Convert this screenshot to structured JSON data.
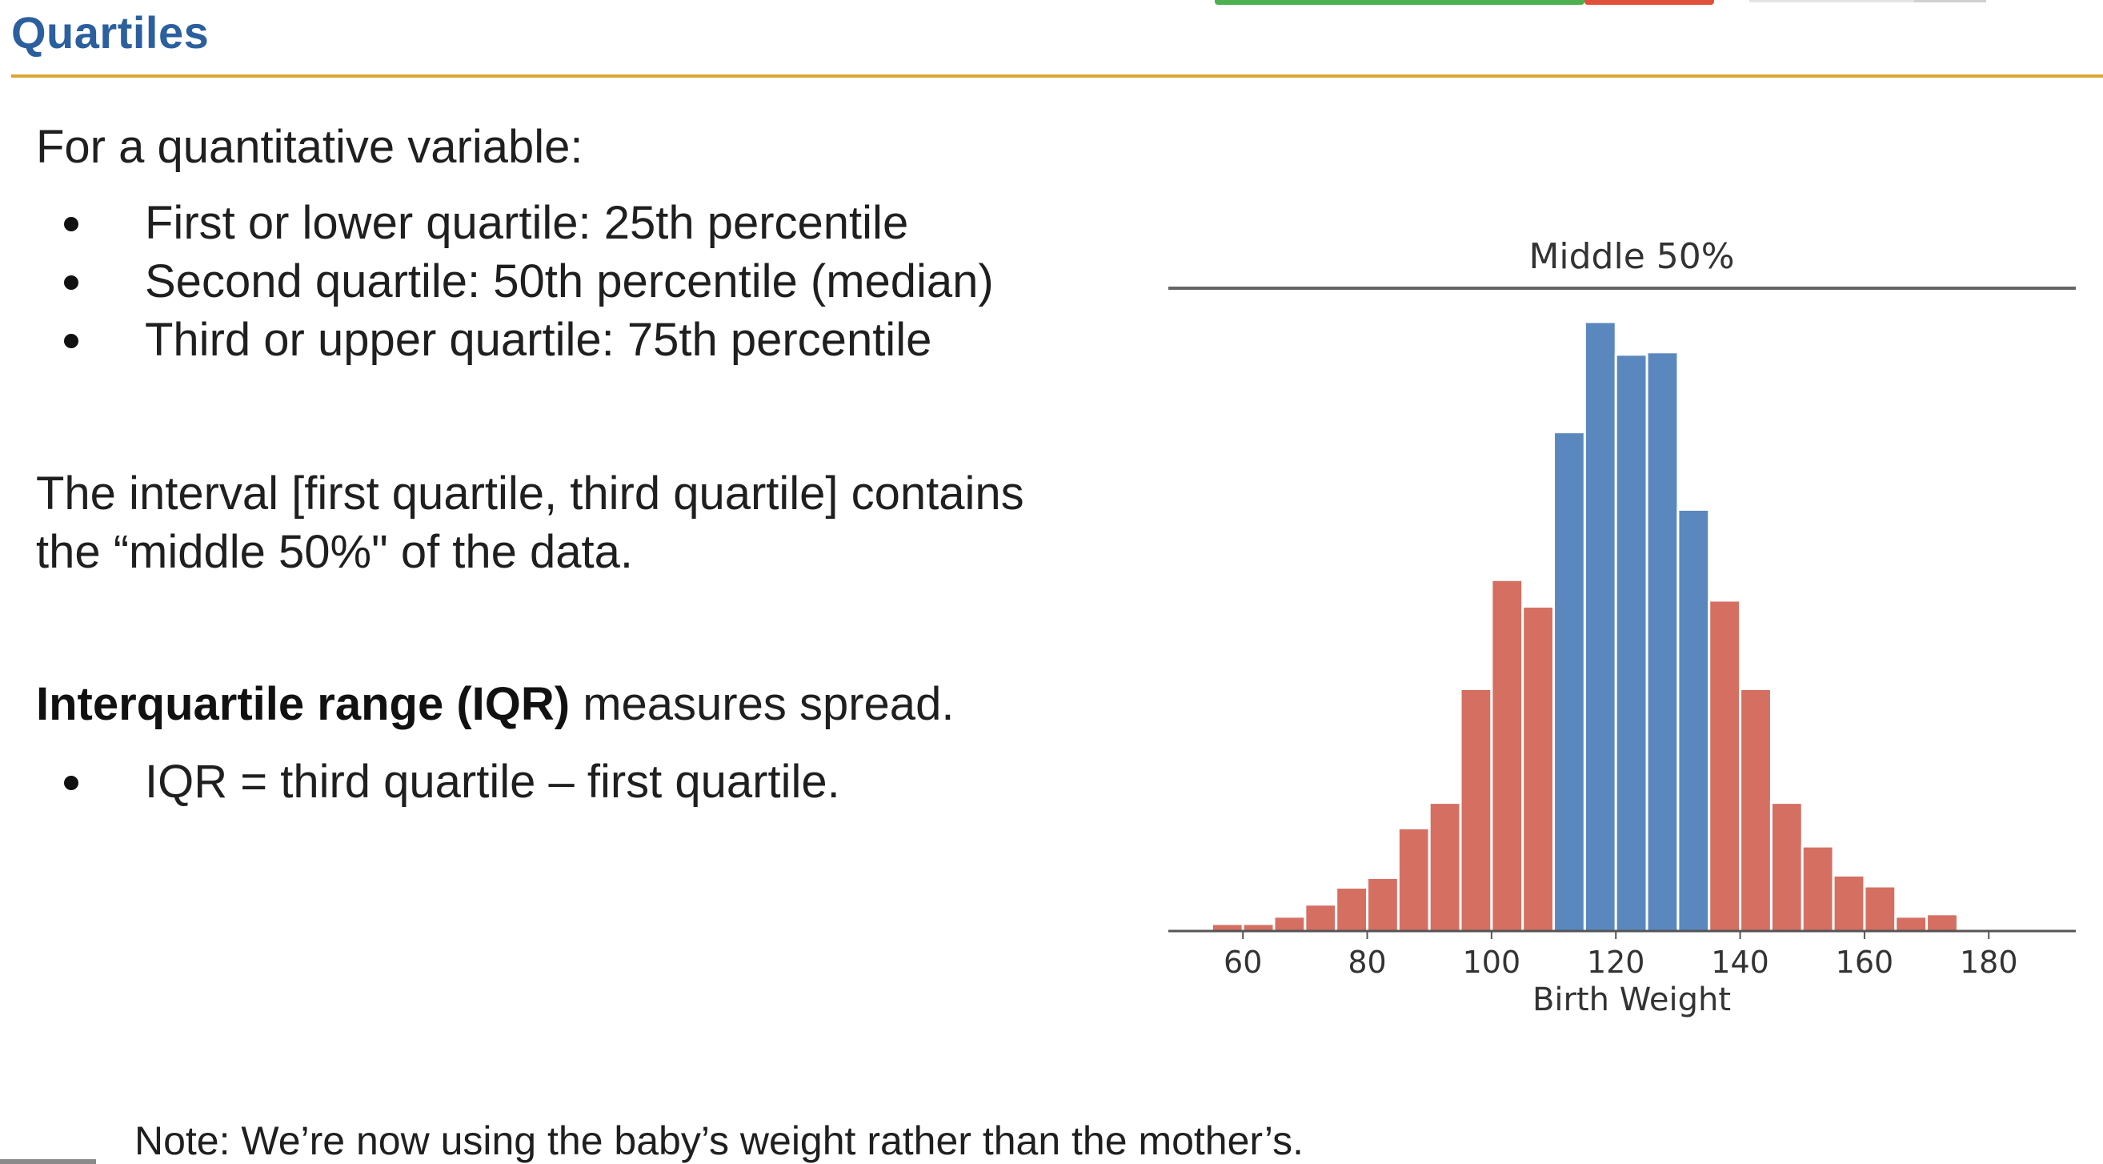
{
  "slide": {
    "title": "Quartiles",
    "intro": "For a quantitative variable:",
    "quartile_bullets": [
      "First or lower quartile: 25th percentile",
      "Second quartile: 50th percentile (median)",
      "Third or upper quartile: 75th percentile"
    ],
    "interval_lines": [
      "The interval [first quartile, third quartile] contains",
      "the “middle 50%\" of the data."
    ],
    "iqr_bold": "Interquartile range (IQR)",
    "iqr_rest": " measures spread.",
    "iqr_bullets": [
      "IQR = third quartile – first quartile."
    ],
    "note": "Note: We’re now using the baby’s weight rather than the mother’s."
  },
  "colors": {
    "title": "#2B5F9E",
    "rule": "#D9A634",
    "middle_bars": "#5A87BE",
    "outer_bars": "#D46F62"
  },
  "chart_data": {
    "type": "bar",
    "title": "Middle 50%",
    "xlabel": "Birth Weight",
    "ylabel": "",
    "x_ticks": [
      60,
      80,
      100,
      120,
      140,
      160,
      180
    ],
    "xlim": [
      48,
      194
    ],
    "bin_width": 5,
    "bins_start": [
      55,
      60,
      65,
      70,
      75,
      80,
      85,
      90,
      95,
      100,
      105,
      110,
      115,
      120,
      125,
      130,
      135,
      140,
      145,
      150,
      155,
      160,
      165,
      170,
      175
    ],
    "values": [
      0.0006,
      0.0006,
      0.0012,
      0.0022,
      0.0036,
      0.0044,
      0.0085,
      0.0106,
      0.02,
      0.029,
      0.0268,
      0.0412,
      0.0503,
      0.0476,
      0.0478,
      0.0348,
      0.0273,
      0.02,
      0.0106,
      0.007,
      0.0046,
      0.0037,
      0.0012,
      0.0014,
      0.0002
    ],
    "highlight_range": [
      110,
      135
    ],
    "grid": false
  }
}
